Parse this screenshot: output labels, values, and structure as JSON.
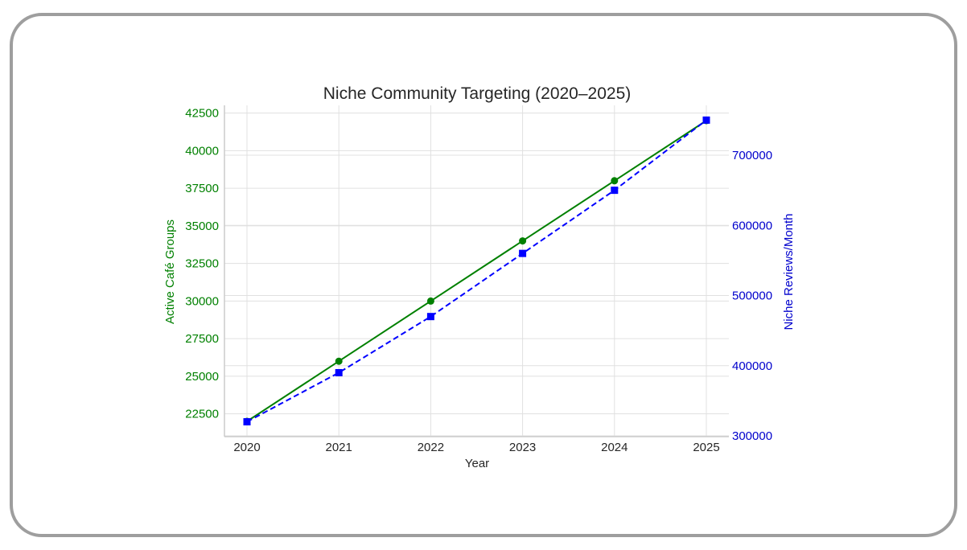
{
  "chart_data": {
    "type": "line",
    "title": "Niche Community Targeting (2020–2025)",
    "xlabel": "Year",
    "ylabel": "Active Café Groups",
    "y2label": "Niche Reviews/Month",
    "x": [
      2020,
      2021,
      2022,
      2023,
      2024,
      2025
    ],
    "x_ticks": [
      "2020",
      "2021",
      "2022",
      "2023",
      "2024",
      "2025"
    ],
    "y_ticks": [
      "22500",
      "25000",
      "27500",
      "30000",
      "32500",
      "35000",
      "37500",
      "40000",
      "42500"
    ],
    "y2_ticks": [
      "300000",
      "400000",
      "500000",
      "600000",
      "700000"
    ],
    "ylim": [
      21000,
      43500
    ],
    "y2lim": [
      300000,
      765000
    ],
    "grid": true,
    "legend": null,
    "series": [
      {
        "name": "Active Café Groups",
        "axis": "left",
        "color": "#008000",
        "marker": "circle",
        "linestyle": "solid",
        "values": [
          22000,
          26000,
          30000,
          34000,
          38000,
          42000
        ]
      },
      {
        "name": "Niche Reviews/Month",
        "axis": "right",
        "color": "#0000ff",
        "marker": "square",
        "linestyle": "dashed",
        "values": [
          320000,
          390000,
          470000,
          560000,
          650000,
          750000
        ]
      }
    ]
  },
  "colors": {
    "left_axis": "#008000",
    "right_axis": "#0000cc",
    "grid": "#e0e0e0",
    "frame": "#9e9e9e"
  }
}
